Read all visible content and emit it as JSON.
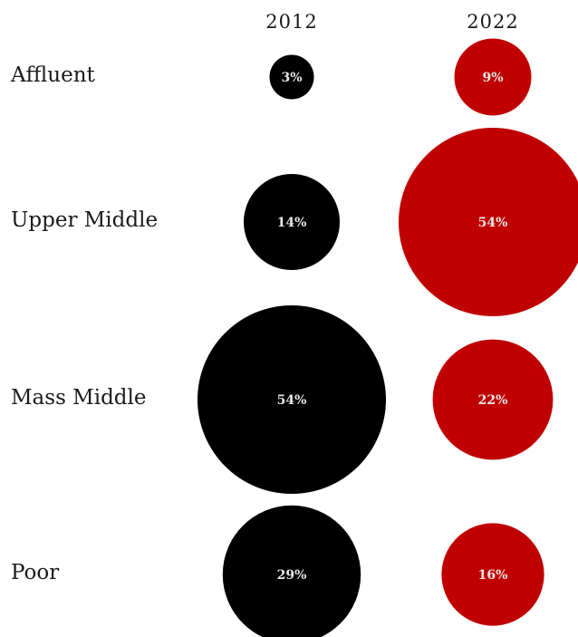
{
  "chart_data": {
    "type": "bubble",
    "columns": [
      "2012",
      "2022"
    ],
    "rows": [
      "Affluent",
      "Upper Middle",
      "Mass Middle",
      "Poor"
    ],
    "series": [
      {
        "column": "2012",
        "color": "#000000",
        "values": [
          3,
          14,
          54,
          29
        ],
        "labels": [
          "3%",
          "14%",
          "54%",
          "29%"
        ]
      },
      {
        "column": "2022",
        "color": "#c00000",
        "values": [
          9,
          54,
          22,
          16
        ],
        "labels": [
          "9%",
          "54%",
          "22%",
          "16%"
        ]
      }
    ]
  }
}
